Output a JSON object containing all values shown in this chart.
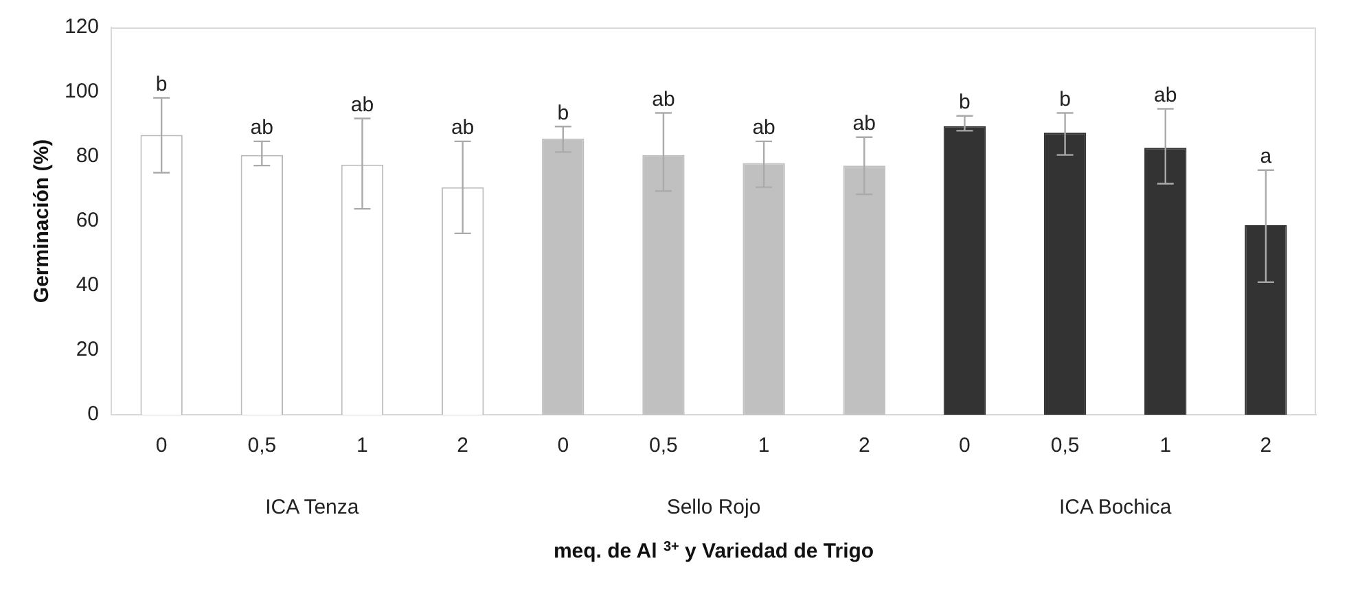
{
  "chart_data": {
    "type": "bar",
    "xlabel": "meq. de Al $^{3+}$ y Variedad de Trigo",
    "ylabel": "Germinación (%)",
    "categories": [
      "0",
      "0,5",
      "1",
      "2",
      "0",
      "0,5",
      "1",
      "2",
      "0",
      "0,5",
      "1",
      "2"
    ],
    "values": [
      86.7,
      80.5,
      77.5,
      70.5,
      85.6,
      80.5,
      78,
      77.2,
      89.4,
      87.4,
      82.7,
      58.7
    ],
    "colors": [
      "#ffffff",
      "#ffffff",
      "#ffffff",
      "#ffffff",
      "#c0c0c0",
      "#c0c0c0",
      "#c0c0c0",
      "#c0c0c0",
      "#333333",
      "#333333",
      "#333333",
      "#333333"
    ],
    "errors": [
      [
        75,
        98.2
      ],
      [
        77.2,
        84.7
      ],
      [
        63.8,
        91.8
      ],
      [
        56.2,
        84.7
      ],
      [
        81.4,
        89.3
      ],
      [
        69.3,
        93.5
      ],
      [
        70.5,
        84.7
      ],
      [
        68.3,
        86
      ],
      [
        88,
        92.6
      ],
      [
        80.5,
        93.5
      ],
      [
        71.6,
        94.8
      ],
      [
        41.1,
        75.8
      ]
    ],
    "value_labels": [
      "b",
      "ab",
      "ab",
      "ab",
      "b",
      "ab",
      "ab",
      "ab",
      "b",
      "b",
      "ab",
      "a"
    ],
    "annotations": [
      "ICA Tenza",
      "Sello Rojo",
      "ICA Bochica"
    ],
    "ylim": [
      0,
      120
    ],
    "yticks": [
      0,
      20,
      40,
      60,
      80,
      100,
      120
    ],
    "grid": false,
    "legend": false
  }
}
